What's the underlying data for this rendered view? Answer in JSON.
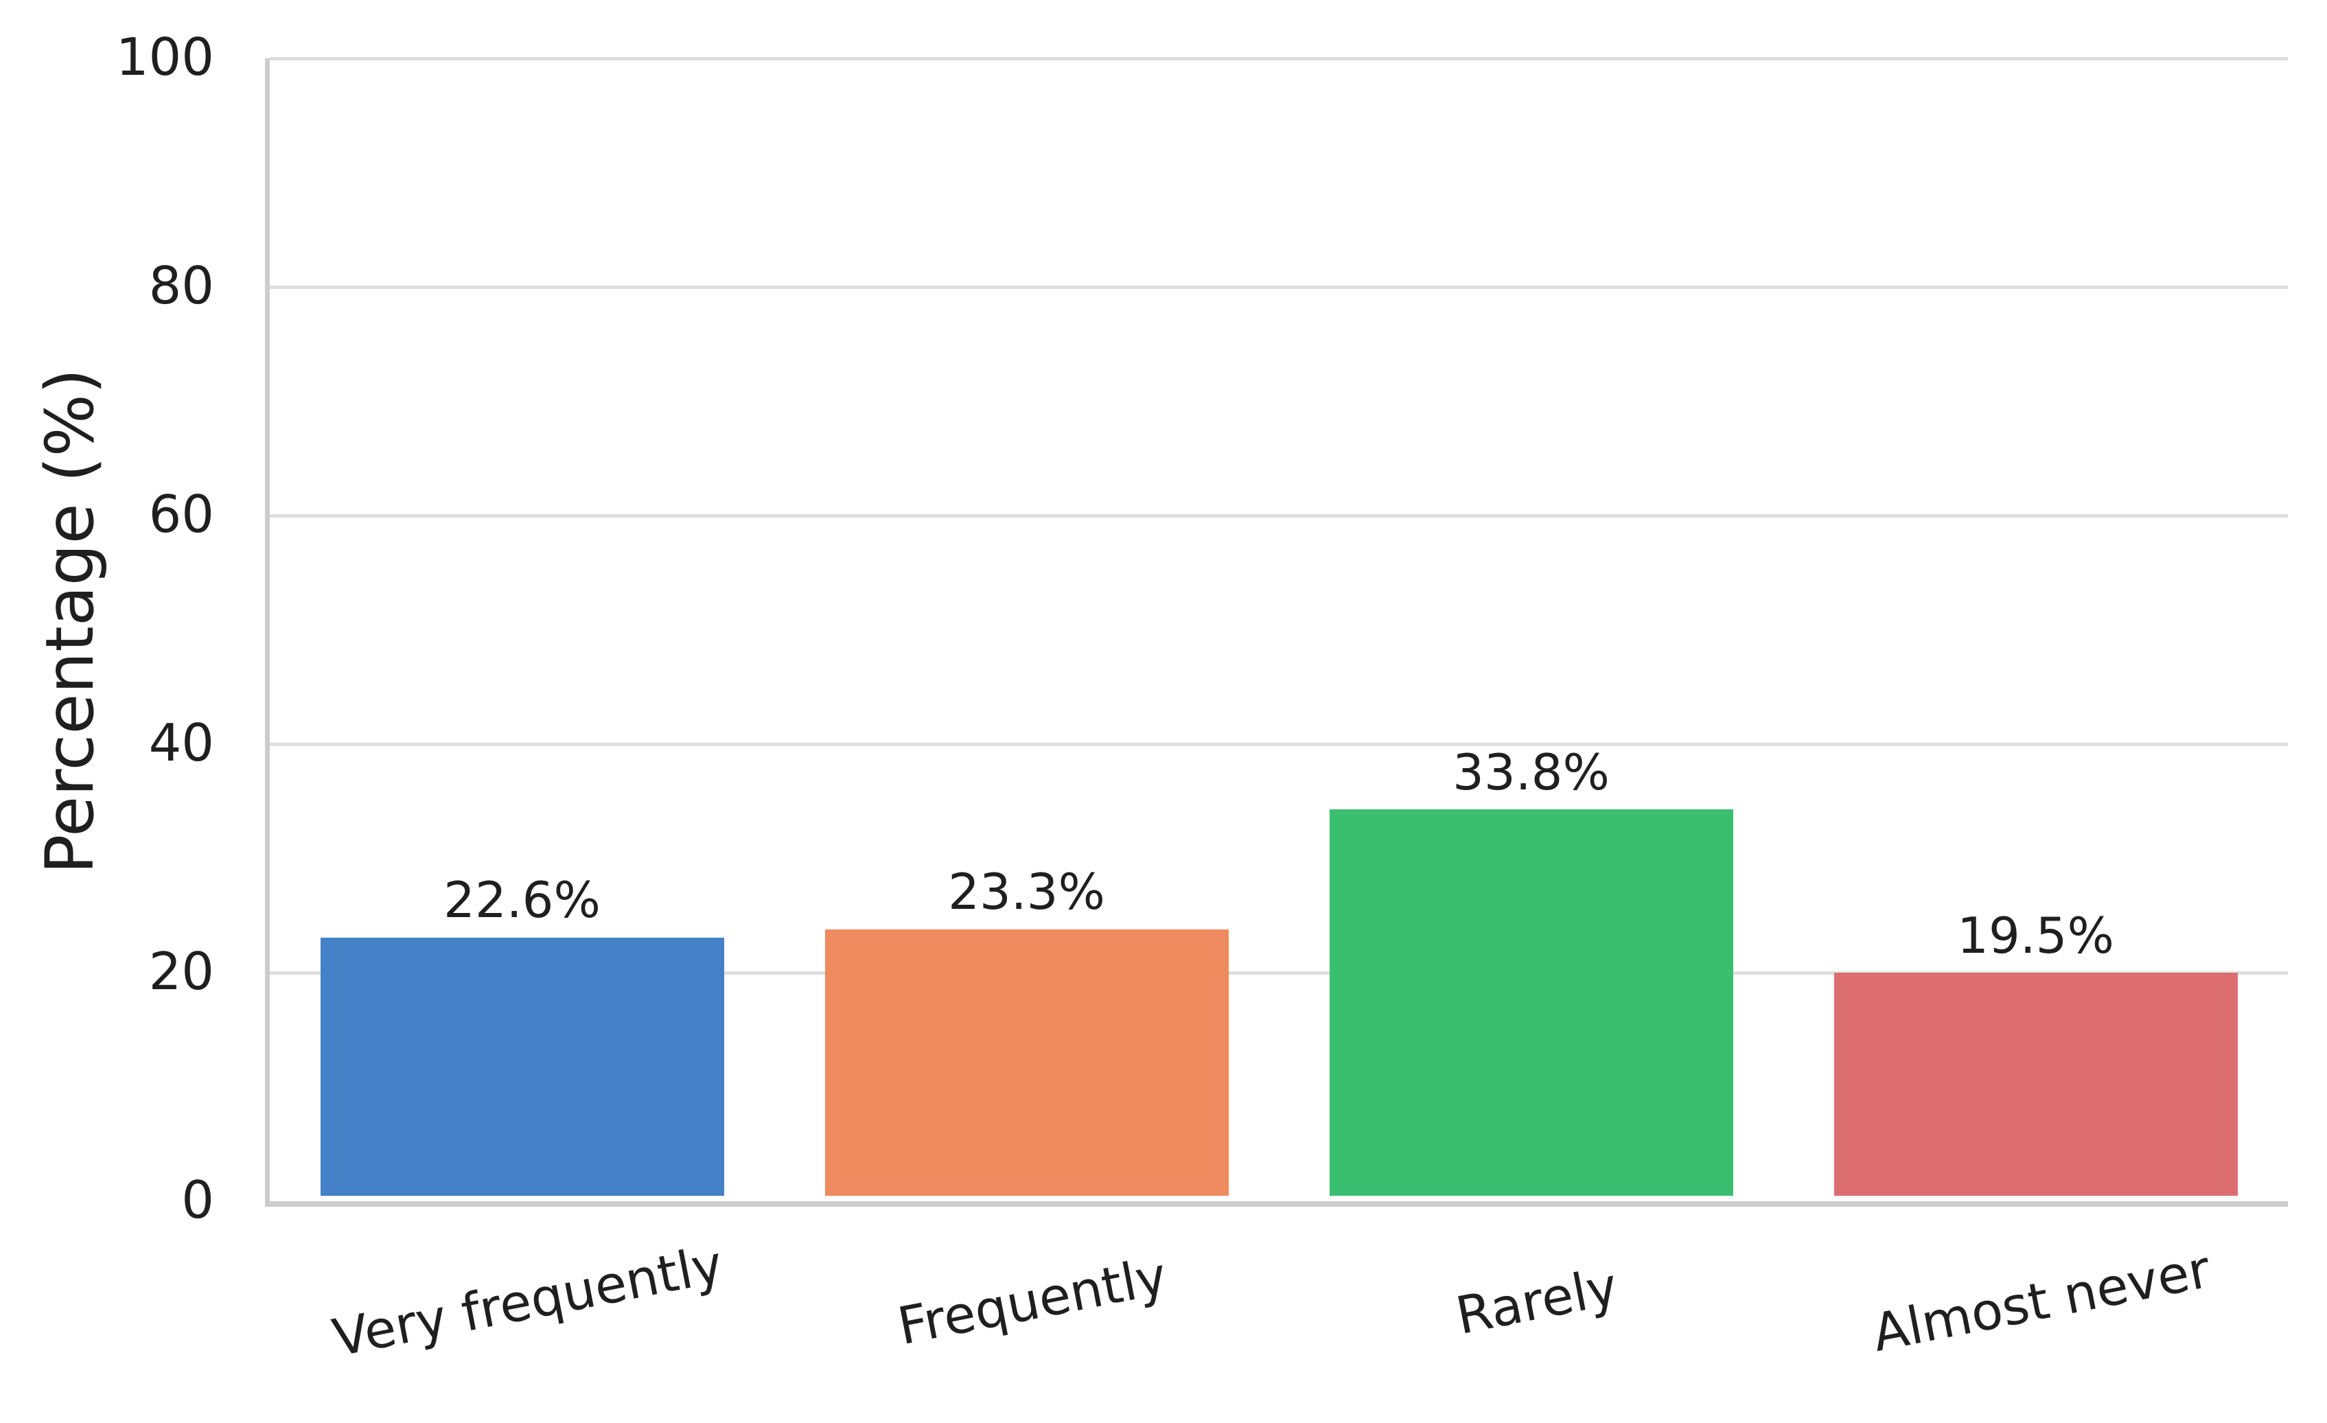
{
  "chart_data": {
    "type": "bar",
    "title": "",
    "xlabel": "",
    "ylabel": "Percentage (%)",
    "categories": [
      "Very frequently",
      "Frequently",
      "Rarely",
      "Almost never"
    ],
    "values": [
      22.6,
      23.3,
      33.8,
      19.5
    ],
    "value_labels": [
      "22.6%",
      "23.3%",
      "33.8%",
      "19.5%"
    ],
    "bar_colors": [
      "#4380C6",
      "#EF8B5E",
      "#3ABF70",
      "#DC6E70"
    ],
    "ylim": [
      0,
      100
    ],
    "yticks": [
      0,
      20,
      40,
      60,
      80,
      100
    ],
    "ytick_labels": [
      "0",
      "20",
      "40",
      "60",
      "80",
      "100"
    ],
    "grid": "horizontal",
    "legend_position": "none",
    "colors": {
      "text": "#1f1f1f",
      "grid": "#dedede",
      "axis": "#cccccc",
      "background": "#ffffff"
    }
  }
}
